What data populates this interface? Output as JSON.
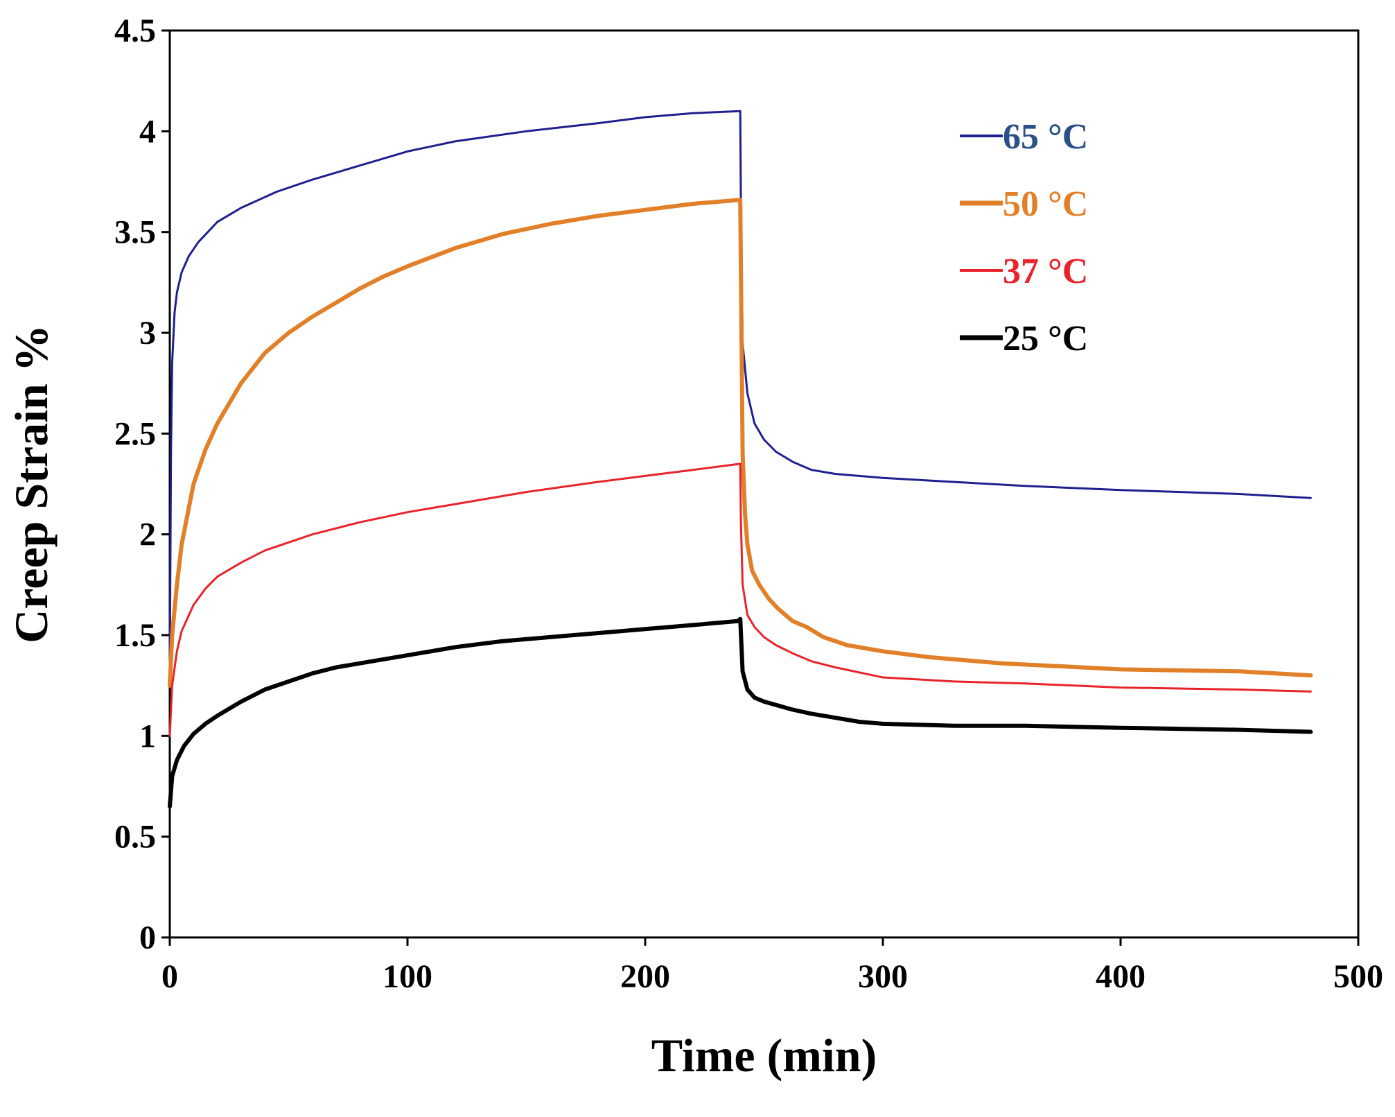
{
  "chart_data": {
    "type": "line",
    "title": "",
    "xlabel": "Time (min)",
    "ylabel": "Creep Strain %",
    "xlim": [
      0,
      500
    ],
    "ylim": [
      0,
      4.5
    ],
    "x_ticks": [
      0,
      100,
      200,
      300,
      400,
      500
    ],
    "y_ticks": [
      0,
      0.5,
      1,
      1.5,
      2,
      2.5,
      3,
      3.5,
      4,
      4.5
    ],
    "x_tick_labels": [
      "0",
      "100",
      "200",
      "300",
      "400",
      "500"
    ],
    "y_tick_labels": [
      "0",
      "0.5",
      "1",
      "1.5",
      "2",
      "2.5",
      "3",
      "3.5",
      "4",
      "4.5"
    ],
    "grid": false,
    "legend_position": "top-right",
    "series": [
      {
        "name": "65 °C",
        "color": "#1f1f8f",
        "label_color": "#2b4f86",
        "stroke_width": 3,
        "x": [
          0,
          0.5,
          1,
          2,
          3,
          5,
          8,
          12,
          20,
          30,
          45,
          60,
          80,
          100,
          120,
          150,
          180,
          200,
          220,
          240,
          240.3,
          241,
          243,
          246,
          250,
          255,
          262,
          270,
          280,
          300,
          330,
          360,
          400,
          450,
          480
        ],
        "y": [
          1.3,
          2.4,
          2.85,
          3.1,
          3.2,
          3.3,
          3.38,
          3.45,
          3.55,
          3.62,
          3.7,
          3.76,
          3.83,
          3.9,
          3.95,
          4.0,
          4.04,
          4.07,
          4.09,
          4.1,
          3.6,
          2.95,
          2.7,
          2.55,
          2.47,
          2.41,
          2.36,
          2.32,
          2.3,
          2.28,
          2.26,
          2.24,
          2.22,
          2.2,
          2.18
        ]
      },
      {
        "name": "50 °C",
        "color": "#e2802a",
        "label_color": "#e2802a",
        "stroke_width": 6,
        "x": [
          0,
          1,
          3,
          5,
          10,
          15,
          20,
          30,
          40,
          50,
          60,
          70,
          80,
          90,
          100,
          120,
          140,
          160,
          180,
          200,
          220,
          240,
          240.3,
          241,
          242,
          243,
          245,
          248,
          252,
          256,
          262,
          268,
          275,
          285,
          300,
          320,
          350,
          400,
          450,
          480
        ],
        "y": [
          1.25,
          1.5,
          1.75,
          1.95,
          2.25,
          2.42,
          2.55,
          2.75,
          2.9,
          3.0,
          3.08,
          3.15,
          3.22,
          3.28,
          3.33,
          3.42,
          3.49,
          3.54,
          3.58,
          3.61,
          3.64,
          3.66,
          3.3,
          2.4,
          2.1,
          1.95,
          1.82,
          1.75,
          1.68,
          1.63,
          1.57,
          1.54,
          1.49,
          1.45,
          1.42,
          1.39,
          1.36,
          1.33,
          1.32,
          1.3
        ]
      },
      {
        "name": "37 °C",
        "color": "#e8232a",
        "label_color": "#e8232a",
        "stroke_width": 3,
        "x": [
          0,
          1,
          3,
          5,
          10,
          15,
          20,
          30,
          40,
          50,
          60,
          80,
          100,
          120,
          150,
          180,
          200,
          220,
          240,
          240.3,
          241,
          243,
          246,
          250,
          255,
          262,
          270,
          280,
          300,
          330,
          360,
          400,
          450,
          480
        ],
        "y": [
          1.0,
          1.25,
          1.42,
          1.52,
          1.65,
          1.73,
          1.79,
          1.86,
          1.92,
          1.96,
          2.0,
          2.06,
          2.11,
          2.15,
          2.21,
          2.26,
          2.29,
          2.32,
          2.35,
          2.05,
          1.75,
          1.6,
          1.54,
          1.49,
          1.45,
          1.41,
          1.37,
          1.34,
          1.29,
          1.27,
          1.26,
          1.24,
          1.23,
          1.22
        ]
      },
      {
        "name": "25 °C",
        "color": "#000000",
        "label_color": "#000000",
        "stroke_width": 6,
        "x": [
          0,
          1,
          3,
          6,
          10,
          15,
          20,
          30,
          40,
          50,
          60,
          70,
          80,
          100,
          120,
          140,
          160,
          180,
          200,
          220,
          239,
          240,
          240.5,
          241,
          243,
          246,
          250,
          256,
          262,
          270,
          280,
          290,
          300,
          330,
          360,
          400,
          450,
          480
        ],
        "y": [
          0.65,
          0.8,
          0.88,
          0.95,
          1.01,
          1.06,
          1.1,
          1.17,
          1.23,
          1.27,
          1.31,
          1.34,
          1.36,
          1.4,
          1.44,
          1.47,
          1.49,
          1.51,
          1.53,
          1.55,
          1.57,
          1.58,
          1.45,
          1.32,
          1.23,
          1.19,
          1.17,
          1.15,
          1.13,
          1.11,
          1.09,
          1.07,
          1.06,
          1.05,
          1.05,
          1.04,
          1.03,
          1.02
        ]
      }
    ]
  }
}
